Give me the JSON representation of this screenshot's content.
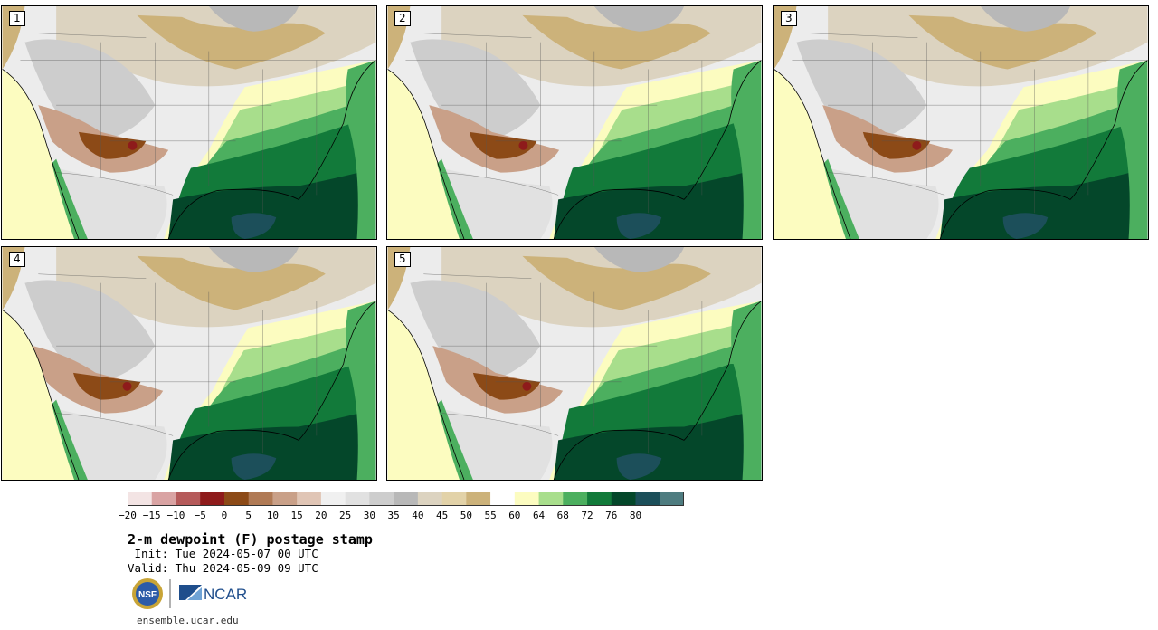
{
  "members": [
    {
      "label": "1",
      "dry_shift": 0,
      "moist_shift": 0
    },
    {
      "label": "2",
      "dry_shift": 6,
      "moist_shift": -4
    },
    {
      "label": "3",
      "dry_shift": 14,
      "moist_shift": 8
    },
    {
      "label": "4",
      "dry_shift": -6,
      "moist_shift": 4
    },
    {
      "label": "5",
      "dry_shift": 10,
      "moist_shift": -8
    }
  ],
  "colorbar": {
    "colors": [
      "#f3e4e4",
      "#d9a3a3",
      "#b55a5a",
      "#8e1b1b",
      "#8c4a17",
      "#b07a55",
      "#c9a088",
      "#e0c5b5",
      "#f0f0f0",
      "#e1e1e1",
      "#cdcdcd",
      "#b8b8b8",
      "#dcd3c0",
      "#e2d2a8",
      "#ccb27a",
      "#ffffff",
      "#fcfcc0",
      "#a8de8c",
      "#4caf5f",
      "#127a3a",
      "#04472a",
      "#1c4f5a",
      "#4e7c80"
    ],
    "ticks": [
      "−20",
      "−15",
      "−10",
      "−5",
      "0",
      "5",
      "10",
      "15",
      "20",
      "25",
      "30",
      "35",
      "40",
      "45",
      "50",
      "55",
      "60",
      "64",
      "68",
      "72",
      "76",
      "80"
    ]
  },
  "title": "2-m dewpoint (F) postage stamp",
  "init": " Init: Tue 2024-05-07 00 UTC",
  "valid": "Valid: Thu 2024-05-09 09 UTC",
  "logos": {
    "nsf": "NSF",
    "ncar": "NCAR"
  },
  "site": "ensemble.ucar.edu"
}
